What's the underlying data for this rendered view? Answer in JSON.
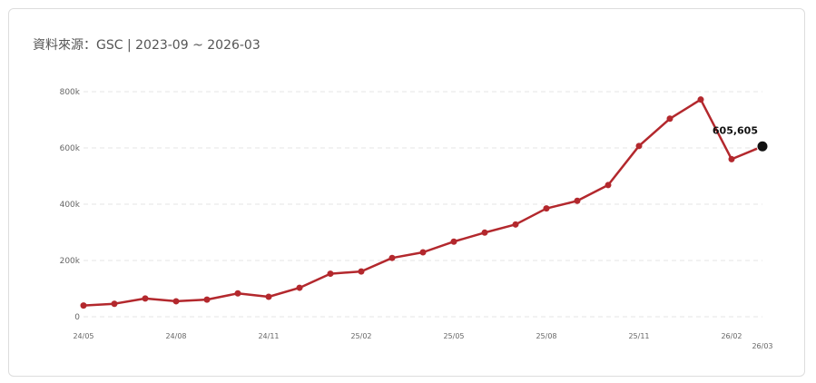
{
  "header": {
    "source_label": "資料來源：GSC | 2023-09 ~ 2026-03"
  },
  "chart_data": {
    "type": "line",
    "title": "",
    "xlabel": "",
    "ylabel": "",
    "ylim": [
      0,
      800000
    ],
    "y_ticks": [
      {
        "value": 0,
        "label": "0"
      },
      {
        "value": 200000,
        "label": "200k"
      },
      {
        "value": 400000,
        "label": "400k"
      },
      {
        "value": 600000,
        "label": "600k"
      },
      {
        "value": 800000,
        "label": "800k"
      }
    ],
    "x": [
      "24/05",
      "24/06",
      "24/07",
      "24/08",
      "24/09",
      "24/10",
      "24/11",
      "24/12",
      "25/01",
      "25/02",
      "25/03",
      "25/04",
      "25/05",
      "25/06",
      "25/07",
      "25/08",
      "25/09",
      "25/10",
      "25/11",
      "25/12",
      "26/01",
      "26/02",
      "26/03"
    ],
    "x_tick_labels": [
      "24/05",
      "24/08",
      "24/11",
      "25/02",
      "25/05",
      "25/08",
      "25/11",
      "26/02",
      "26/03"
    ],
    "series": [
      {
        "values": [
          40000,
          46000,
          65000,
          55000,
          61000,
          83000,
          71000,
          103000,
          153000,
          161000,
          209000,
          229000,
          267000,
          299000,
          328000,
          385000,
          412000,
          468000,
          607000,
          704000,
          772000,
          560000,
          605605
        ]
      }
    ],
    "data_labels": [
      {
        "index": 22,
        "text": "605,605"
      }
    ],
    "grid": true,
    "colors": {
      "line": "#b3282d",
      "highlight_point": "#111111",
      "grid": "#e4e4e4"
    }
  }
}
